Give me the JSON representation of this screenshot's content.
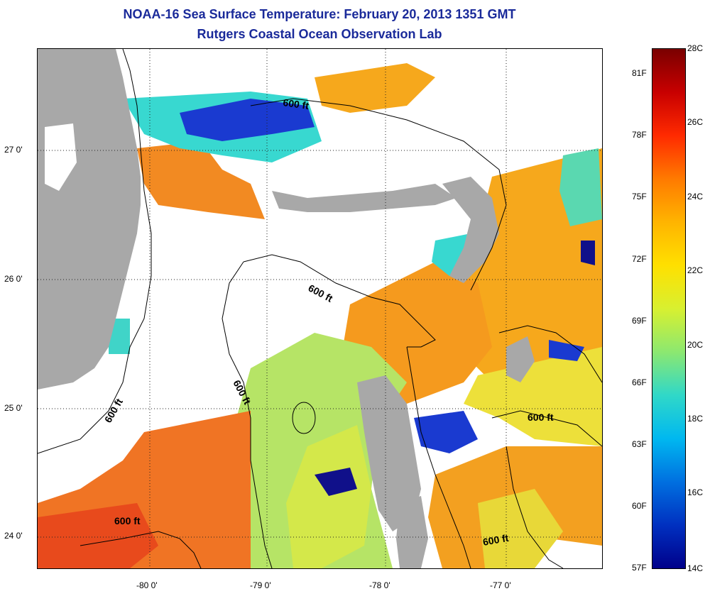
{
  "title": "NOAA-16 Sea Surface Temperature:  February 20, 2013 1351 GMT",
  "subtitle": "Rutgers Coastal Ocean Observation Lab",
  "axes": {
    "lat_labels": [
      "27 0'",
      "26 0'",
      "25 0'",
      "24 0'"
    ],
    "lon_labels": [
      "-80 0'",
      "-79 0'",
      "-78 0'",
      "-77 0'"
    ]
  },
  "colorbar": {
    "fahrenheit": [
      "81F",
      "78F",
      "75F",
      "72F",
      "69F",
      "66F",
      "63F",
      "60F",
      "57F"
    ],
    "celsius": [
      "28C",
      "26C",
      "24C",
      "22C",
      "20C",
      "18C",
      "16C",
      "14C"
    ],
    "stops": [
      "#7a0000",
      "#c80000",
      "#ff2a00",
      "#ff7a00",
      "#ffb400",
      "#ffe000",
      "#d8f030",
      "#8ce870",
      "#30d8c8",
      "#00b8f0",
      "#0070e0",
      "#0030c0",
      "#00008a"
    ]
  },
  "contour_labels": {
    "l1": "600 ft",
    "l2": "600 ft",
    "l3": "600 ft",
    "l4": "600 ft",
    "l5": "600 ft",
    "l6": "600 ft",
    "l7": "600 ft"
  },
  "colors": {
    "land": "#a8a8a8",
    "warm": "#f07a24",
    "orange": "#f6a81c",
    "yellow": "#e8e43a",
    "lightgreen": "#b8e860",
    "cyan": "#38d8d0",
    "blue": "#1a3ad0",
    "navy": "#10108a"
  }
}
